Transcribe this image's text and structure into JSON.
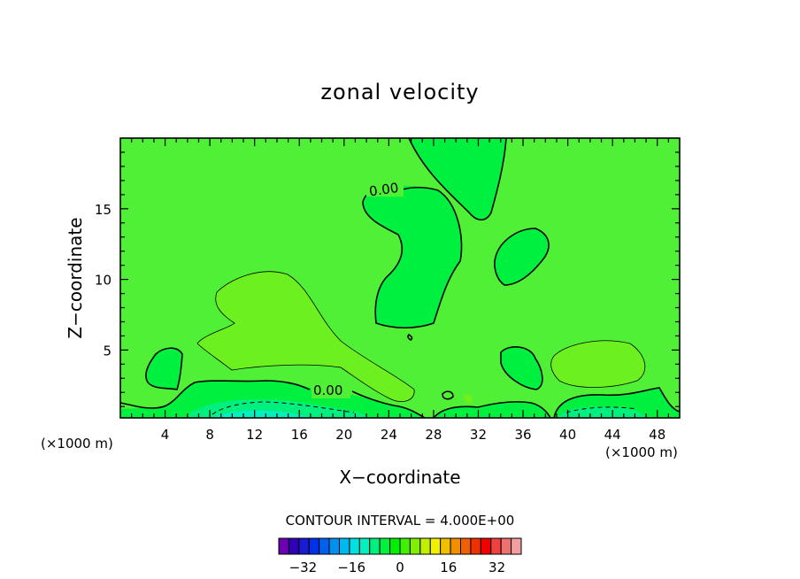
{
  "chart_data": {
    "type": "contour",
    "title": "zonal velocity",
    "xlabel": "X−coordinate",
    "ylabel": "Z−coordinate",
    "x_unit_left": "(×1000 m)",
    "x_unit_right": "(×1000 m)",
    "xlim": [
      0,
      50
    ],
    "ylim": [
      0.2,
      20
    ],
    "x_ticks": [
      4,
      8,
      12,
      16,
      20,
      24,
      28,
      32,
      36,
      40,
      44,
      48
    ],
    "y_ticks": [
      5,
      10,
      15
    ],
    "contour_labels": [
      {
        "text": "0.00",
        "x": 23.5,
        "y": 16
      },
      {
        "text": "0.00",
        "x": 18.8,
        "y": 2.1
      }
    ],
    "contour_interval_text": "CONTOUR INTERVAL = 4.000E+00",
    "colorbar": {
      "min": -40,
      "max": 40,
      "step": 4,
      "tick_values": [
        -32,
        -16,
        0,
        16,
        32
      ],
      "tick_labels": [
        "−32",
        "−16",
        "0",
        "16",
        "32"
      ],
      "colors": [
        "#6a00b0",
        "#3000b8",
        "#1a1ad0",
        "#0030e8",
        "#0060f0",
        "#0090f0",
        "#00b8f0",
        "#00e0e0",
        "#00f0c0",
        "#00f080",
        "#00f040",
        "#00f000",
        "#40f000",
        "#80f000",
        "#c0f000",
        "#f0f000",
        "#f0c000",
        "#f09000",
        "#f06000",
        "#f03000",
        "#f00000",
        "#f04040",
        "#f07070",
        "#f0a0a0"
      ]
    },
    "background_color": "#4ff036"
  }
}
